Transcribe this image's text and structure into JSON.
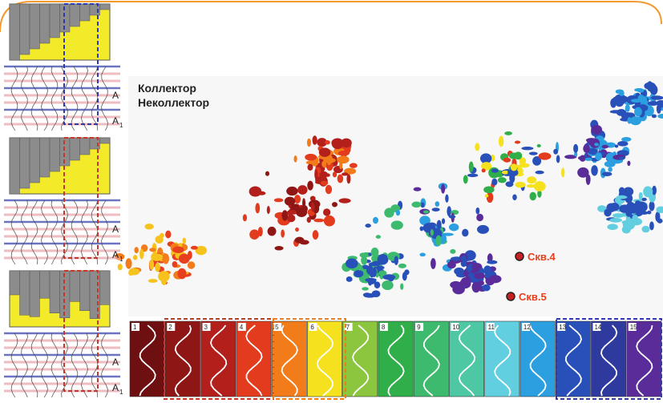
{
  "map": {
    "labels": [
      "Коллектор",
      "Неколлектор"
    ],
    "wells": [
      {
        "label": "Скв.4"
      },
      {
        "label": "Скв.5"
      }
    ]
  },
  "left_panels": [
    {
      "top_horizon": "A",
      "bottom_horizon": "A",
      "bottom_subscript": "1"
    },
    {
      "top_horizon": "A",
      "bottom_horizon": "A",
      "bottom_subscript": "1"
    },
    {
      "top_horizon": "A",
      "bottom_horizon": "A",
      "bottom_subscript": "1"
    }
  ],
  "legend": {
    "classes": [
      {
        "number": 1,
        "color": "#6e0f12"
      },
      {
        "number": 2,
        "color": "#8e1716"
      },
      {
        "number": 3,
        "color": "#b3201b"
      },
      {
        "number": 4,
        "color": "#e23b1e"
      },
      {
        "number": 5,
        "color": "#f27b1a"
      },
      {
        "number": 6,
        "color": "#f6e11e"
      },
      {
        "number": 7,
        "color": "#8cc63e"
      },
      {
        "number": 8,
        "color": "#2fae4a"
      },
      {
        "number": 9,
        "color": "#3dba6e"
      },
      {
        "number": 10,
        "color": "#4ec7a4"
      },
      {
        "number": 11,
        "color": "#62cfe0"
      },
      {
        "number": 12,
        "color": "#2b9fe0"
      },
      {
        "number": 13,
        "color": "#2850b8"
      },
      {
        "number": 14,
        "color": "#2f3a9e"
      },
      {
        "number": 15,
        "color": "#5a2c9a"
      }
    ]
  }
}
